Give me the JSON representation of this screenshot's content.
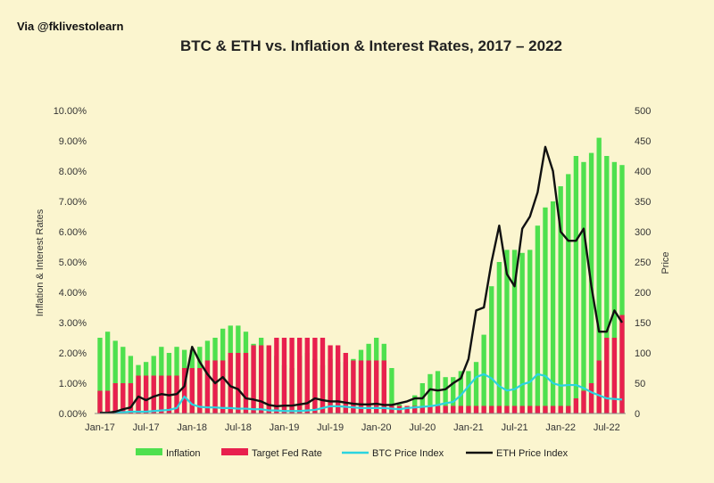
{
  "watermark": "Via @fklivestolearn",
  "chart_data": {
    "type": "bar",
    "title": "BTC & ETH vs. Inflation & Interest Rates, 2017 – 2022",
    "ylabel_left": "Inflation & Interest Rates",
    "ylabel_right": "Price",
    "ylim_left": [
      0,
      10
    ],
    "ylim_right": [
      0,
      500
    ],
    "y_ticks_left": [
      "0.00%",
      "1.00%",
      "2.00%",
      "3.00%",
      "4.00%",
      "5.00%",
      "6.00%",
      "7.00%",
      "8.00%",
      "9.00%",
      "10.00%"
    ],
    "y_ticks_right": [
      "0",
      "50",
      "100",
      "150",
      "200",
      "250",
      "300",
      "350",
      "400",
      "450",
      "500"
    ],
    "x_tick_labels": [
      "Jan-17",
      "Jul-17",
      "Jan-18",
      "Jul-18",
      "Jan-19",
      "Jul-19",
      "Jan-20",
      "Jul-20",
      "Jan-21",
      "Jul-21",
      "Jan-22",
      "Jul-22"
    ],
    "x_tick_month_index": [
      0,
      6,
      12,
      18,
      24,
      30,
      36,
      42,
      48,
      54,
      60,
      66
    ],
    "legend_position": "bottom",
    "series": [
      {
        "name": "Inflation",
        "kind": "bar",
        "axis": "left",
        "color": "#4ee04e",
        "values": [
          2.5,
          2.7,
          2.4,
          2.2,
          1.9,
          1.6,
          1.7,
          1.9,
          2.2,
          2.0,
          2.2,
          2.1,
          2.1,
          2.2,
          2.4,
          2.5,
          2.8,
          2.9,
          2.9,
          2.7,
          2.3,
          2.5,
          2.2,
          1.9,
          1.6,
          1.5,
          1.9,
          2.0,
          1.8,
          1.6,
          1.8,
          1.7,
          1.7,
          1.8,
          2.1,
          2.3,
          2.5,
          2.3,
          1.5,
          0.3,
          0.1,
          0.6,
          1.0,
          1.3,
          1.4,
          1.2,
          1.2,
          1.4,
          1.4,
          1.7,
          2.6,
          4.2,
          5.0,
          5.4,
          5.4,
          5.3,
          5.4,
          6.2,
          6.8,
          7.0,
          7.5,
          7.9,
          8.5,
          8.3,
          8.6,
          9.1,
          8.5,
          8.3,
          8.2
        ],
        "values_through_month": 68
      },
      {
        "name": "Target Fed Rate",
        "kind": "bar",
        "axis": "left",
        "color": "#e8204e",
        "values": [
          0.75,
          0.75,
          1.0,
          1.0,
          1.0,
          1.25,
          1.25,
          1.25,
          1.25,
          1.25,
          1.25,
          1.5,
          1.5,
          1.5,
          1.75,
          1.75,
          1.75,
          2.0,
          2.0,
          2.0,
          2.25,
          2.25,
          2.25,
          2.5,
          2.5,
          2.5,
          2.5,
          2.5,
          2.5,
          2.5,
          2.25,
          2.25,
          2.0,
          1.75,
          1.75,
          1.75,
          1.75,
          1.75,
          0.25,
          0.25,
          0.25,
          0.25,
          0.25,
          0.25,
          0.25,
          0.25,
          0.25,
          0.25,
          0.25,
          0.25,
          0.25,
          0.25,
          0.25,
          0.25,
          0.25,
          0.25,
          0.25,
          0.25,
          0.25,
          0.25,
          0.25,
          0.25,
          0.5,
          0.75,
          1.0,
          1.75,
          2.5,
          2.5,
          3.25
        ]
      },
      {
        "name": "BTC Price Index",
        "kind": "line",
        "axis": "right",
        "color": "#2ad4e0",
        "values": [
          1,
          1,
          2,
          2,
          3,
          3,
          3,
          4,
          5,
          6,
          9,
          28,
          15,
          11,
          10,
          10,
          9,
          9,
          8,
          8,
          7,
          7,
          5,
          5,
          4,
          4,
          4,
          5,
          6,
          9,
          12,
          12,
          11,
          10,
          9,
          9,
          9,
          9,
          8,
          7,
          9,
          10,
          11,
          12,
          14,
          17,
          19,
          30,
          45,
          60,
          65,
          58,
          45,
          38,
          40,
          48,
          52,
          65,
          62,
          50,
          46,
          47,
          47,
          42,
          35,
          30,
          25,
          24,
          23
        ]
      },
      {
        "name": "ETH Price Index",
        "kind": "line",
        "axis": "right",
        "color": "#111111",
        "values": [
          1,
          1,
          3,
          7,
          10,
          28,
          22,
          28,
          32,
          30,
          32,
          45,
          110,
          85,
          65,
          50,
          60,
          45,
          40,
          25,
          23,
          20,
          14,
          12,
          13,
          13,
          15,
          17,
          25,
          22,
          20,
          20,
          18,
          16,
          15,
          15,
          16,
          14,
          14,
          17,
          20,
          25,
          25,
          40,
          38,
          40,
          50,
          58,
          90,
          170,
          175,
          250,
          310,
          230,
          210,
          305,
          325,
          365,
          440,
          400,
          300,
          285,
          285,
          305,
          210,
          135,
          135,
          170,
          150
        ]
      }
    ]
  }
}
